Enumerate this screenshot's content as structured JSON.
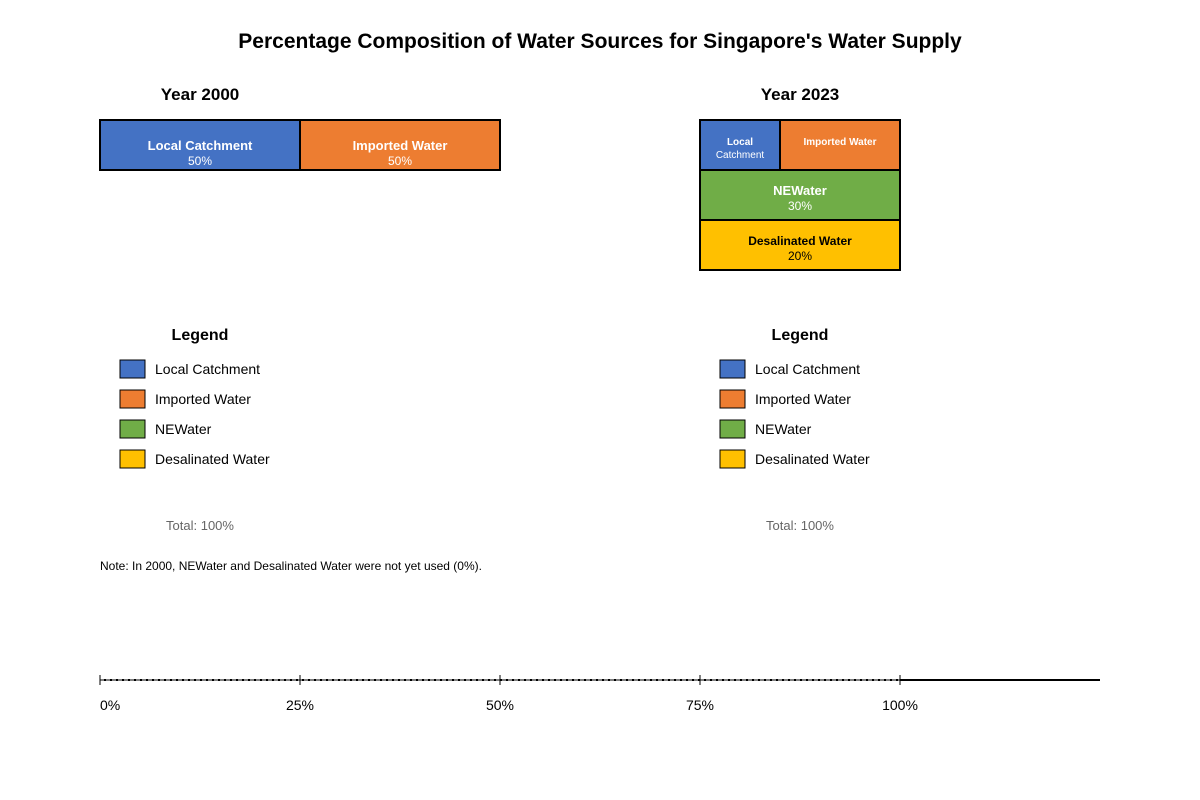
{
  "title": "Percentage Composition of Water Sources for Singapore's Water Supply",
  "colors": {
    "local_catchment": "#4472C4",
    "imported_water": "#ED7D31",
    "newater": "#70AD47",
    "desalinated_water": "#FFC000",
    "border": "#000000",
    "muted_text": "#666666"
  },
  "chart_data": [
    {
      "type": "bar",
      "title": "Year 2000",
      "layout": "horizontal-stacked",
      "segments": [
        {
          "label": "Local Catchment",
          "value": 50,
          "value_label": "50%",
          "color": "#4472C4"
        },
        {
          "label": "Imported Water",
          "value": 50,
          "value_label": "50%",
          "color": "#ED7D31"
        }
      ],
      "legend": {
        "title": "Legend",
        "items": [
          {
            "label": "Local Catchment",
            "color": "#4472C4"
          },
          {
            "label": "Imported Water",
            "color": "#ED7D31"
          },
          {
            "label": "NEWater",
            "color": "#70AD47"
          },
          {
            "label": "Desalinated Water",
            "color": "#FFC000"
          }
        ]
      },
      "total_label": "Total: 100%"
    },
    {
      "type": "bar",
      "title": "Year 2023",
      "layout": "mosaic",
      "segments": [
        {
          "label_line1": "Local",
          "label_line2": "Catchment",
          "value": 20,
          "color": "#4472C4"
        },
        {
          "label_line1": "Imported Water",
          "label_line2": "",
          "value": 30,
          "color": "#ED7D31"
        },
        {
          "label_line1": "NEWater",
          "label_line2": "30%",
          "value": 30,
          "color": "#70AD47"
        },
        {
          "label_line1": "Desalinated Water",
          "label_line2": "20%",
          "value": 20,
          "color": "#FFC000"
        }
      ],
      "legend": {
        "title": "Legend",
        "items": [
          {
            "label": "Local Catchment",
            "color": "#4472C4"
          },
          {
            "label": "Imported Water",
            "color": "#ED7D31"
          },
          {
            "label": "NEWater",
            "color": "#70AD47"
          },
          {
            "label": "Desalinated Water",
            "color": "#FFC000"
          }
        ]
      },
      "total_label": "Total: 100%"
    }
  ],
  "scale_axis": {
    "ticks": [
      0,
      25,
      50,
      75,
      100
    ],
    "tick_labels": [
      "0%",
      "25%",
      "50%",
      "75%",
      "100%"
    ]
  },
  "note": "Note: In 2000, NEWater and Desalinated Water were not yet used (0%)."
}
